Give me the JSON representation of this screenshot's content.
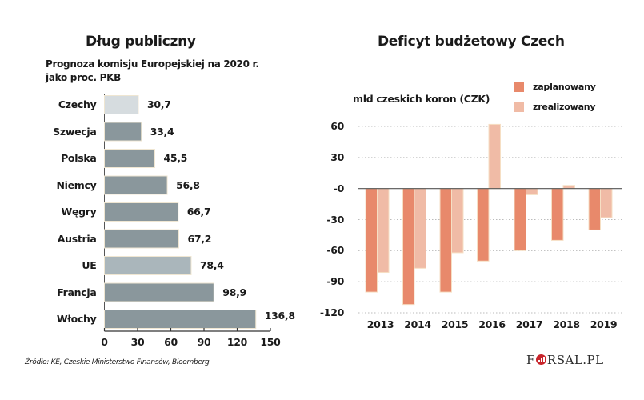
{
  "source": "Źródło: KE, Czeskie Ministerstwo Finansów, Bloomberg",
  "logo": {
    "part1": "F",
    "part2": "RSAL.PL"
  },
  "chart_data": [
    {
      "type": "bar",
      "orientation": "horizontal",
      "title": "Dług publiczny",
      "subtitle_line1": "Prognoza komisju Europejskiej na 2020 r.",
      "subtitle_line2": "jako proc. PKB",
      "categories": [
        "Czechy",
        "Szwecja",
        "Polska",
        "Niemcy",
        "Węgry",
        "Austria",
        "UE",
        "Francja",
        "Włochy"
      ],
      "values": [
        30.7,
        33.4,
        45.5,
        56.8,
        66.7,
        67.2,
        78.4,
        98.9,
        136.8
      ],
      "value_labels": [
        "30,7",
        "33,4",
        "45,5",
        "56,8",
        "66,7",
        "67,2",
        "78,4",
        "98,9",
        "136,8"
      ],
      "highlight": {
        "Czechy": "#d6dcdf",
        "UE": "#aab6bb"
      },
      "bar_color": "#8a979c",
      "xlim": [
        0,
        150
      ],
      "xticks": [
        0,
        30,
        60,
        90,
        120,
        150
      ],
      "xtick_labels": [
        "0",
        "30",
        "60",
        "90",
        "120",
        "150"
      ],
      "xlabel": "",
      "ylabel": "",
      "grid": false
    },
    {
      "type": "bar",
      "orientation": "vertical",
      "title": "Deficyt budżetowy Czech",
      "ylabel": "mld czeskich koron (CZK)",
      "categories": [
        "2013",
        "2014",
        "2015",
        "2016",
        "2017",
        "2018",
        "2019"
      ],
      "series": [
        {
          "name": "zaplanowany",
          "color": "#e8896b",
          "values": [
            -100,
            -112,
            -100,
            -70,
            -60,
            -50,
            -40
          ]
        },
        {
          "name": "zrealizowany",
          "color": "#f0bba6",
          "values": [
            -81,
            -77,
            -62,
            62,
            -6,
            3,
            -28
          ]
        }
      ],
      "ylim": [
        -120,
        60
      ],
      "yticks": [
        60,
        30,
        0,
        -30,
        -60,
        -90,
        -120
      ],
      "ytick_labels": [
        "60",
        "30",
        "-0",
        "-30",
        "-60",
        "-90",
        "-120"
      ],
      "legend_position": "top-right",
      "grid": true
    }
  ]
}
